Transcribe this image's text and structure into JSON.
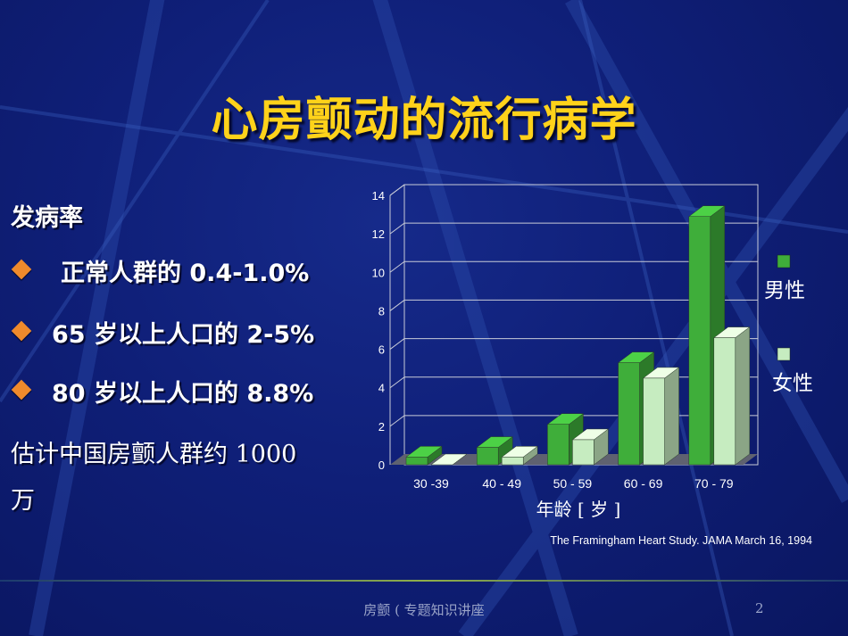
{
  "slide": {
    "title": "心房颤动的流行病学",
    "incidence_label": "发病率",
    "bullets": [
      "正常人群的 0.4-1.0%",
      "65 岁以上人口的 2-5%",
      "80 岁以上人口的 8.8%"
    ],
    "estimate_line1": "估计中国房颤人群约 1000",
    "estimate_line2": "万",
    "footer": "房颤 ( 专题知识讲座",
    "page_number": "2"
  },
  "colors": {
    "background": "#0f1f78",
    "title": "#ffd21a",
    "bullet": "#f08a2c",
    "male": "#3fae3a",
    "female": "#c6ecc0"
  },
  "chart_data": {
    "type": "bar",
    "categories": [
      "30 -39",
      "40 - 49",
      "50 - 59",
      "60 - 69",
      "70 - 79"
    ],
    "series": [
      {
        "name": "男性",
        "values": [
          0.4,
          0.9,
          2.1,
          5.3,
          12.9
        ]
      },
      {
        "name": "女性",
        "values": [
          0.0,
          0.4,
          1.3,
          4.5,
          6.6
        ]
      }
    ],
    "yticks": [
      "0",
      "2",
      "4",
      "6",
      "8",
      "10",
      "12",
      "14"
    ],
    "ylim": [
      0,
      14
    ],
    "xlabel": "年龄 [ 岁 ]",
    "ylabel": "",
    "grid": true,
    "legend_position": "right",
    "source": "The Framingham Heart Study. JAMA March 16, 1994"
  }
}
